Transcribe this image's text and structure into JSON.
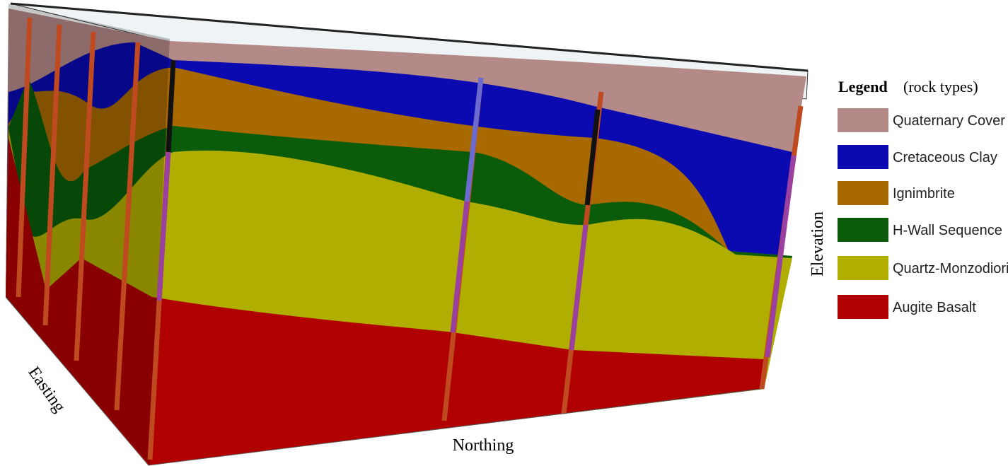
{
  "legend": {
    "title": "Legend",
    "subtitle": "(rock types)",
    "items": [
      "Quaternary Cover",
      "Cretaceous Clay",
      "Ignimbrite",
      "H-Wall Sequence",
      "Quartz-Monzodiorite",
      "Augite Basalt"
    ]
  },
  "axes": {
    "easting": "Easting",
    "northing": "Northing",
    "elevation": "Elevation"
  }
}
